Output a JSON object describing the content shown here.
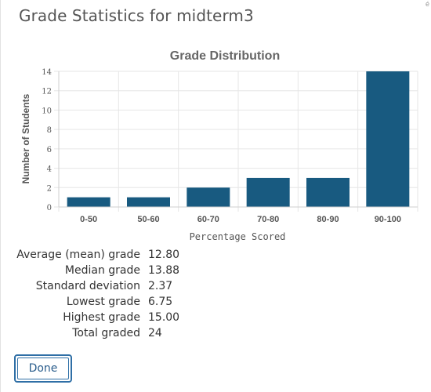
{
  "dialog": {
    "title": "Grade Statistics for midterm3",
    "corner_mark": "é"
  },
  "chart_data": {
    "type": "bar",
    "title": "Grade Distribution",
    "xlabel": "Percentage Scored",
    "ylabel": "Number of Students",
    "categories": [
      "0-50",
      "50-60",
      "60-70",
      "70-80",
      "80-90",
      "90-100"
    ],
    "values": [
      1,
      1,
      2,
      3,
      3,
      14
    ],
    "ylim": [
      0,
      14
    ],
    "yticks": [
      0,
      2,
      4,
      6,
      8,
      10,
      12,
      14
    ],
    "grid": true,
    "bar_color": "#185a80"
  },
  "stats": [
    {
      "label": "Average (mean) grade",
      "value": "12.80"
    },
    {
      "label": "Median grade",
      "value": "13.88"
    },
    {
      "label": "Standard deviation",
      "value": "2.37"
    },
    {
      "label": "Lowest grade",
      "value": "6.75"
    },
    {
      "label": "Highest grade",
      "value": "15.00"
    },
    {
      "label": "Total graded",
      "value": "24"
    }
  ],
  "actions": {
    "done_label": "Done"
  },
  "colors": {
    "accent": "#2f6fa6",
    "bar": "#185a80"
  }
}
